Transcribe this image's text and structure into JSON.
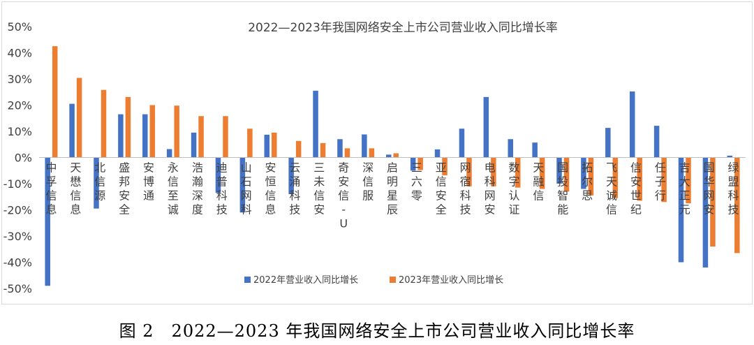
{
  "chart_data": {
    "type": "bar",
    "title": "2022—2023年我国网络安全上市公司营业收入同比增长率",
    "xlabel": "",
    "ylabel": "",
    "ylim": [
      -50,
      50
    ],
    "yticks": [
      "50%",
      "40%",
      "30%",
      "20%",
      "10%",
      "0%",
      "-10%",
      "-20%",
      "-30%",
      "-40%",
      "-50%"
    ],
    "ytick_values": [
      50,
      40,
      30,
      20,
      10,
      0,
      -10,
      -20,
      -30,
      -40,
      -50
    ],
    "grid": false,
    "legend_position": "bottom",
    "categories": [
      "中孚信息",
      "天懋信息",
      "北信源",
      "盛邦安全",
      "安博通",
      "永信至诚",
      "浩瀚深度",
      "迪普科技",
      "山石网科",
      "安恒信息",
      "云涌科技",
      "三未信安",
      "奇安信-U",
      "深信服",
      "启明星辰",
      "三六零",
      "亚信安全",
      "网宿科技",
      "电科网安",
      "数字认证",
      "天融信",
      "国投智能",
      "拓尔思",
      "飞天诚信",
      "信安世纪",
      "任子行",
      "吉大正元",
      "国华网安",
      "绿盟科技"
    ],
    "series": [
      {
        "name": "2022年营业收入同比增长",
        "color": "#4472C4",
        "values": [
          -49,
          20.5,
          -19.5,
          16.5,
          16.5,
          3.2,
          9.5,
          -13.5,
          -21,
          8.7,
          -14,
          25.5,
          7,
          8.8,
          1.1,
          -5,
          3.1,
          11,
          23.1,
          7,
          5.7,
          -10,
          -12,
          11.3,
          25.2,
          12.1,
          -40,
          -42,
          0.7
        ]
      },
      {
        "name": "2023年营业收入同比增长",
        "color": "#ED7D31",
        "values": [
          42.5,
          30.4,
          25.8,
          23.1,
          20,
          19.8,
          15.8,
          15.8,
          11,
          9.5,
          6.3,
          5.5,
          3.5,
          3.5,
          1.6,
          -4.8,
          -6.8,
          -11,
          -11,
          -11.5,
          -12,
          -13,
          -14.5,
          -15.5,
          -16.5,
          -17,
          -17.5,
          -34,
          -36.5
        ]
      }
    ]
  },
  "caption": "图 2　2022—2023 年我国网络安全上市公司营业收入同比增长率"
}
